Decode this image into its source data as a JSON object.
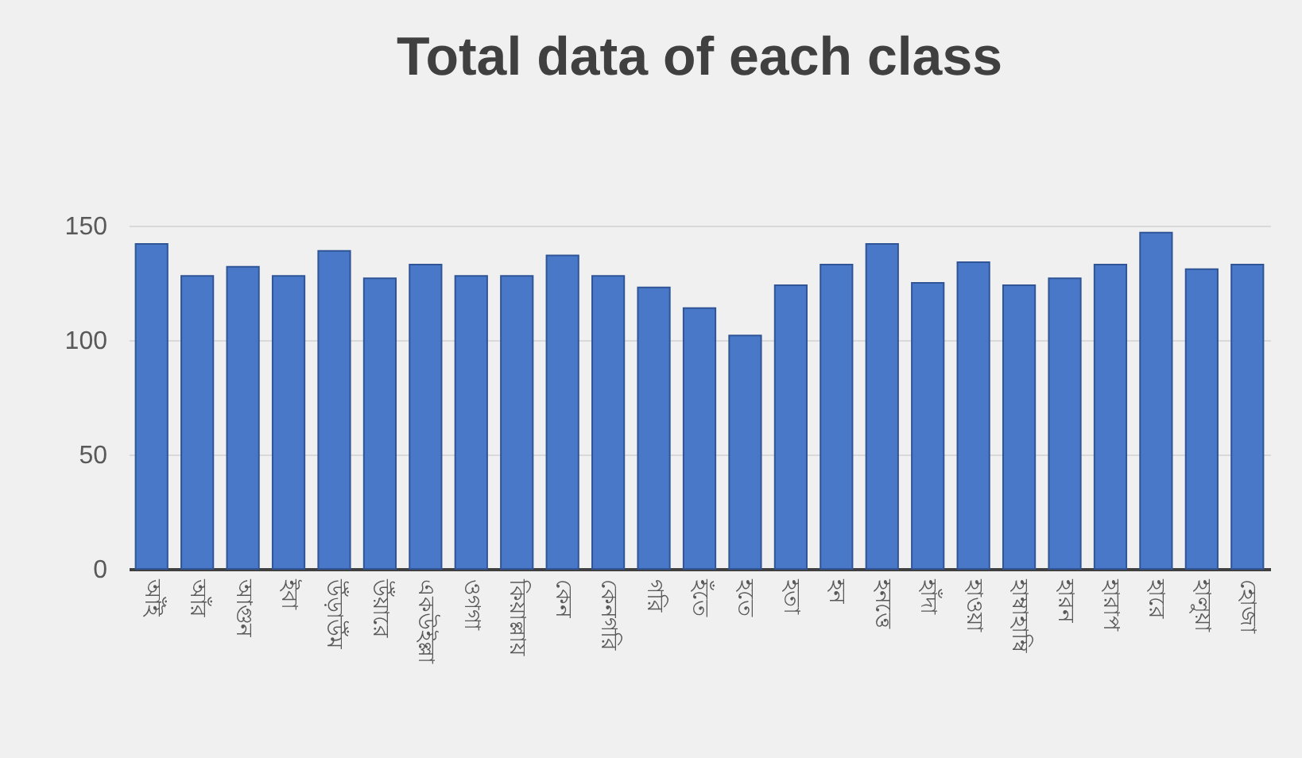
{
  "chart_data": {
    "type": "bar",
    "title": "Total data of each class",
    "categories": [
      "আঁই",
      "আঁর",
      "আগুন",
      "ইবা",
      "উঁড়াউঁম",
      "উঁয়ারে",
      "একউইল্লা",
      "ওগগা",
      "কিয়াল্লায়",
      "কেন",
      "কেনগরি",
      "গরি",
      "হঁতে",
      "হতে",
      "হতা",
      "হন",
      "হনত্তে",
      "হাঁদা",
      "হাওয়া",
      "হাম্বাহাম্বি",
      "হারন",
      "হারাপ",
      "হারে",
      "হালুয়া",
      "হোজা"
    ],
    "values": [
      142,
      128,
      132,
      128,
      139,
      127,
      133,
      128,
      128,
      137,
      128,
      123,
      114,
      102,
      124,
      133,
      142,
      125,
      134,
      124,
      127,
      133,
      147,
      131,
      133
    ],
    "color": "#4a78c8",
    "ylim": [
      0,
      150
    ],
    "yticks": [
      0,
      50,
      100,
      150
    ],
    "grid": "y"
  }
}
